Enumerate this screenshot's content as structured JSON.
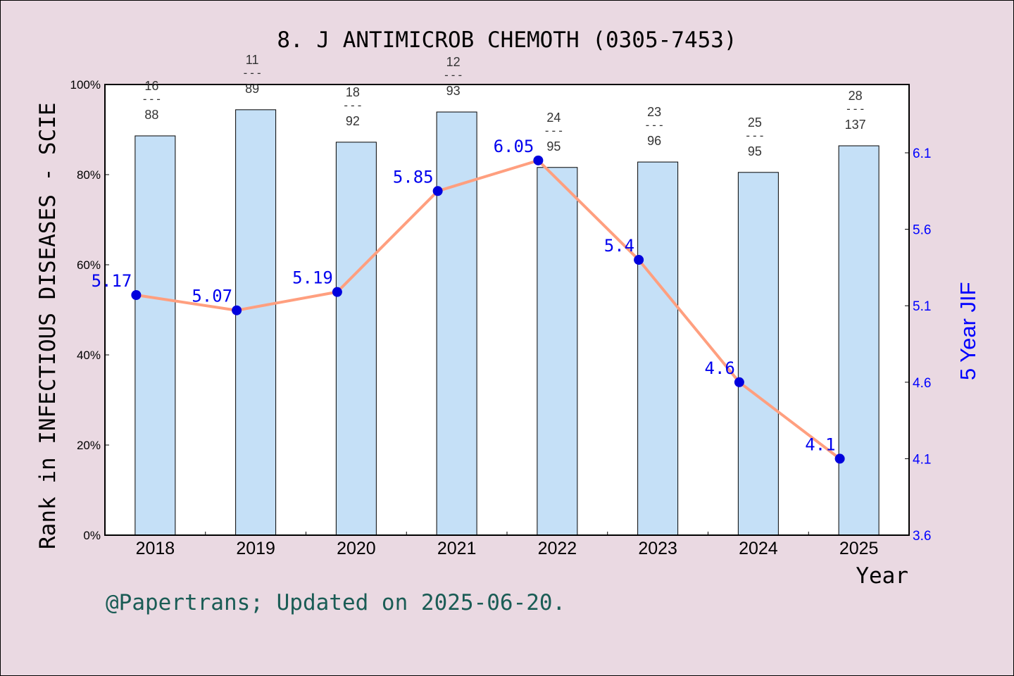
{
  "chart_data": {
    "type": "bar+line",
    "title": "8. J ANTIMICROB CHEMOTH (0305-7453)",
    "xlabel": "Year",
    "ylabel_left": "Rank in INFECTIOUS DISEASES - SCIE",
    "ylabel_right": "5 Year JIF",
    "categories": [
      "2018",
      "2019",
      "2020",
      "2021",
      "2022",
      "2023",
      "2024",
      "2025"
    ],
    "left_axis": {
      "ylim": [
        0,
        100
      ],
      "ticks": [
        "0%",
        "20%",
        "40%",
        "60%",
        "80%",
        "100%"
      ]
    },
    "right_axis": {
      "ylim": [
        3.6,
        6.6
      ],
      "ticks": [
        "3.6",
        "4.1",
        "4.6",
        "5.1",
        "5.6",
        "6.1"
      ]
    },
    "bars": {
      "values": [
        88.6,
        94.4,
        87.2,
        93.9,
        81.6,
        82.8,
        80.5,
        86.4
      ],
      "labels": [
        [
          "16",
          "88"
        ],
        [
          "11",
          "89"
        ],
        [
          "18",
          "92"
        ],
        [
          "12",
          "93"
        ],
        [
          "24",
          "95"
        ],
        [
          "23",
          "96"
        ],
        [
          "25",
          "95"
        ],
        [
          "28",
          "137"
        ]
      ],
      "color": "#c5e0f7"
    },
    "line": {
      "values": [
        5.17,
        5.07,
        5.19,
        5.85,
        6.05,
        5.4,
        4.6,
        4.1
      ],
      "labels": [
        "5.17",
        "5.07",
        "5.19",
        "5.85",
        "6.05",
        "5.4",
        "4.6",
        "4.1"
      ],
      "color": "#ff9f7f",
      "marker_color": "#0000dd"
    },
    "footer": "@Papertrans; Updated on 2025-06-20."
  }
}
